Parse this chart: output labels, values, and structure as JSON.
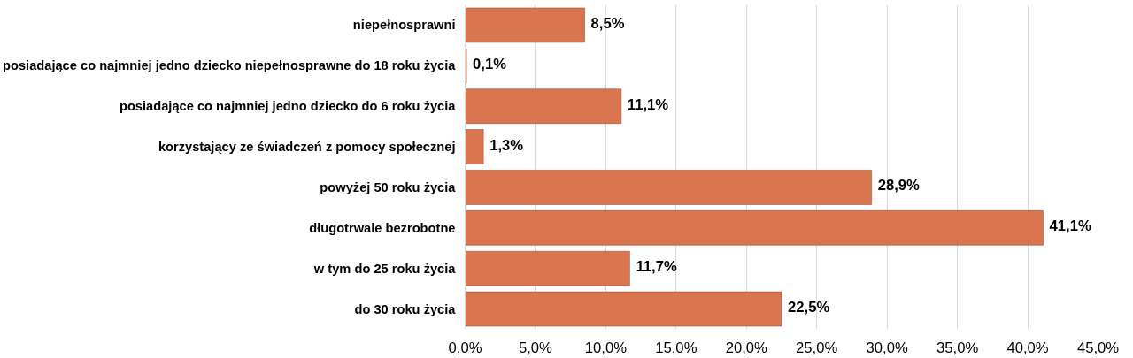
{
  "chart_data": {
    "type": "bar",
    "orientation": "horizontal",
    "categories": [
      "niepełnosprawni",
      "posiadające co najmniej jedno dziecko niepełnosprawne do 18 roku życia",
      "posiadające co najmniej jedno dziecko do 6 roku życia",
      "korzystający ze świadczeń z pomocy społecznej",
      "powyżej 50 roku życia",
      "długotrwale bezrobotne",
      "w tym do 25 roku życia",
      "do 30 roku życia"
    ],
    "values": [
      8.5,
      0.1,
      11.1,
      1.3,
      28.9,
      41.1,
      11.7,
      22.5
    ],
    "value_labels": [
      "8,5%",
      "0,1%",
      "11,1%",
      "1,3%",
      "28,9%",
      "41,1%",
      "11,7%",
      "22,5%"
    ],
    "color": "#d9754f",
    "xlim": [
      0,
      45
    ],
    "xticks": [
      {
        "value": 0,
        "label": "0,0%"
      },
      {
        "value": 5,
        "label": "5,0%"
      },
      {
        "value": 10,
        "label": "10,0%"
      },
      {
        "value": 15,
        "label": "15,0%"
      },
      {
        "value": 20,
        "label": "20,0%"
      },
      {
        "value": 25,
        "label": "25,0%"
      },
      {
        "value": 30,
        "label": "30,0%"
      },
      {
        "value": 35,
        "label": "35,0%"
      },
      {
        "value": 40,
        "label": "40,0%"
      },
      {
        "value": 45,
        "label": "45,0%"
      }
    ],
    "grid": "x"
  }
}
